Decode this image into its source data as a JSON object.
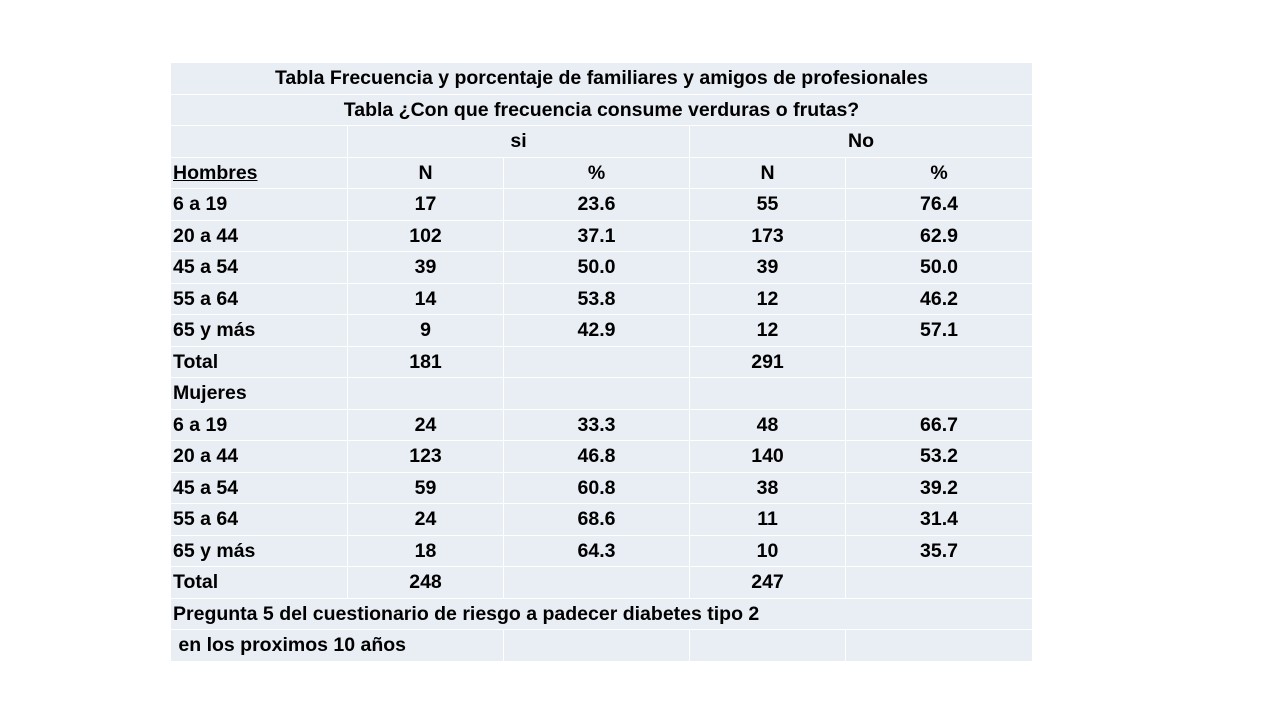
{
  "title1": "Tabla   Frecuencia y porcentaje de familiares y amigos de profesionales",
  "title2": "Tabla ¿Con que frecuencia consume verduras o frutas?",
  "group_si": "si",
  "group_no": "No",
  "col_hombres": "Hombres",
  "col_n1": "N",
  "col_p1": "%",
  "col_n2": "N",
  "col_p2": "%",
  "hombres": [
    {
      "label": "6 a 19",
      "n_si": "17",
      "p_si": "23.6",
      "n_no": "55",
      "p_no": "76.4"
    },
    {
      "label": "20 a 44",
      "n_si": "102",
      "p_si": "37.1",
      "n_no": "173",
      "p_no": "62.9"
    },
    {
      "label": "45 a 54",
      "n_si": "39",
      "p_si": "50.0",
      "n_no": "39",
      "p_no": "50.0"
    },
    {
      "label": "55 a 64",
      "n_si": "14",
      "p_si": "53.8",
      "n_no": "12",
      "p_no": "46.2"
    },
    {
      "label": "65 y más",
      "n_si": "9",
      "p_si": "42.9",
      "n_no": "12",
      "p_no": "57.1"
    }
  ],
  "hombres_total": {
    "label": "Total",
    "n_si": "181",
    "n_no": "291"
  },
  "mujeres_label": "Mujeres",
  "mujeres": [
    {
      "label": "6 a 19",
      "n_si": "24",
      "p_si": "33.3",
      "n_no": "48",
      "p_no": "66.7"
    },
    {
      "label": "20 a 44",
      "n_si": "123",
      "p_si": "46.8",
      "n_no": "140",
      "p_no": "53.2"
    },
    {
      "label": "45 a 54",
      "n_si": "59",
      "p_si": "60.8",
      "n_no": "38",
      "p_no": "39.2"
    },
    {
      "label": "55 a 64",
      "n_si": "24",
      "p_si": "68.6",
      "n_no": "11",
      "p_no": "31.4"
    },
    {
      "label": "65 y más",
      "n_si": "18",
      "p_si": "64.3",
      "n_no": "10",
      "p_no": "35.7"
    }
  ],
  "mujeres_total": {
    "label": "Total",
    "n_si": "248",
    "n_no": "247"
  },
  "footnote1": "Pregunta 5 del cuestionario de riesgo a padecer diabetes tipo 2",
  "footnote2": " en los proximos 10 años"
}
